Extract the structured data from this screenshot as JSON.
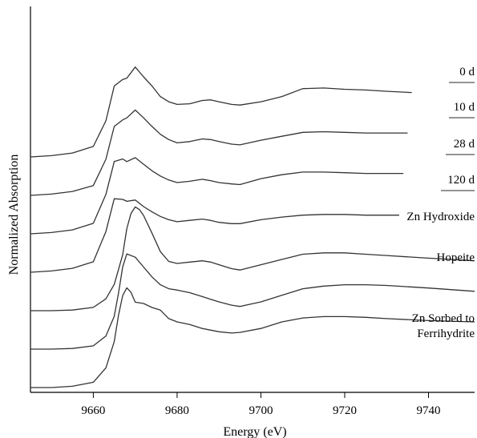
{
  "chart_data": {
    "type": "line",
    "title": "",
    "xlabel": "Energy (eV)",
    "ylabel": "Normalized Absorption",
    "xlim": [
      9645,
      9751
    ],
    "xticks": [
      9660,
      9680,
      9700,
      9720,
      9740
    ],
    "tick_labels": [
      "9660",
      "9680",
      "9700",
      "9720",
      "9740"
    ],
    "grid": false,
    "legend": "none",
    "y_scale": "normalized, vertically offset stacked spectra (no y tick labels)",
    "colors": {
      "line": "#333333",
      "axis": "#000000",
      "text": "#000000"
    },
    "series": [
      {
        "name": "0 d",
        "offset": 6.0,
        "x": [
          9645,
          9650,
          9655,
          9660,
          9663,
          9665,
          9667,
          9668,
          9670,
          9672,
          9674,
          9676,
          9678,
          9680,
          9683,
          9686,
          9688,
          9690,
          9693,
          9695,
          9700,
          9705,
          9710,
          9715,
          9720,
          9725,
          9730,
          9736
        ],
        "y": [
          0.0,
          0.02,
          0.06,
          0.16,
          0.55,
          1.08,
          1.18,
          1.2,
          1.37,
          1.22,
          1.08,
          0.92,
          0.84,
          0.8,
          0.81,
          0.86,
          0.87,
          0.84,
          0.8,
          0.79,
          0.84,
          0.92,
          1.04,
          1.05,
          1.03,
          1.02,
          1.0,
          0.98
        ]
      },
      {
        "name": "10 d",
        "offset": 5.0,
        "x": [
          9645,
          9650,
          9655,
          9660,
          9663,
          9665,
          9667,
          9668,
          9670,
          9672,
          9674,
          9676,
          9678,
          9680,
          9683,
          9686,
          9688,
          9690,
          9693,
          9695,
          9700,
          9705,
          9710,
          9715,
          9720,
          9725,
          9730,
          9735
        ],
        "y": [
          0.0,
          0.02,
          0.06,
          0.15,
          0.55,
          1.05,
          1.15,
          1.18,
          1.3,
          1.18,
          1.05,
          0.93,
          0.85,
          0.8,
          0.82,
          0.86,
          0.85,
          0.82,
          0.78,
          0.77,
          0.84,
          0.9,
          0.96,
          0.97,
          0.96,
          0.95,
          0.95,
          0.95
        ]
      },
      {
        "name": "28 d",
        "offset": 4.0,
        "x": [
          9645,
          9650,
          9655,
          9660,
          9663,
          9665,
          9667,
          9668,
          9670,
          9672,
          9674,
          9676,
          9678,
          9680,
          9683,
          9686,
          9688,
          9690,
          9693,
          9695,
          9700,
          9705,
          9710,
          9715,
          9720,
          9725,
          9730,
          9734
        ],
        "y": [
          0.0,
          0.02,
          0.06,
          0.16,
          0.6,
          1.1,
          1.14,
          1.1,
          1.16,
          1.06,
          0.96,
          0.88,
          0.82,
          0.78,
          0.8,
          0.83,
          0.81,
          0.78,
          0.76,
          0.75,
          0.84,
          0.9,
          0.94,
          0.94,
          0.93,
          0.92,
          0.92,
          0.92
        ]
      },
      {
        "name": "120 d",
        "offset": 3.0,
        "x": [
          9645,
          9650,
          9655,
          9660,
          9663,
          9665,
          9667,
          9668,
          9670,
          9672,
          9674,
          9676,
          9678,
          9680,
          9683,
          9686,
          9688,
          9690,
          9693,
          9695,
          9700,
          9705,
          9710,
          9715,
          9720,
          9725,
          9730,
          9733
        ],
        "y": [
          0.0,
          0.02,
          0.06,
          0.16,
          0.62,
          1.12,
          1.11,
          1.08,
          1.1,
          1.0,
          0.92,
          0.85,
          0.8,
          0.77,
          0.79,
          0.81,
          0.79,
          0.76,
          0.74,
          0.74,
          0.8,
          0.84,
          0.87,
          0.88,
          0.88,
          0.87,
          0.87,
          0.87
        ]
      },
      {
        "name": "Zn Hydroxide",
        "offset": 2.0,
        "x": [
          9645,
          9650,
          9655,
          9660,
          9663,
          9665,
          9667,
          9668,
          9669,
          9670,
          9671,
          9672,
          9674,
          9676,
          9678,
          9680,
          9683,
          9686,
          9688,
          9690,
          9693,
          9695,
          9700,
          9705,
          9710,
          9715,
          9720,
          9725,
          9730,
          9740,
          9751
        ],
        "y": [
          0.0,
          0.0,
          0.01,
          0.05,
          0.18,
          0.4,
          0.85,
          1.25,
          1.48,
          1.58,
          1.54,
          1.45,
          1.18,
          0.9,
          0.75,
          0.72,
          0.74,
          0.76,
          0.74,
          0.7,
          0.64,
          0.62,
          0.7,
          0.78,
          0.86,
          0.88,
          0.88,
          0.86,
          0.84,
          0.8,
          0.76
        ]
      },
      {
        "name": "Hopeite",
        "offset": 1.0,
        "x": [
          9645,
          9650,
          9655,
          9660,
          9663,
          9665,
          9666,
          9667,
          9668,
          9670,
          9672,
          9674,
          9676,
          9678,
          9680,
          9683,
          9686,
          9688,
          9690,
          9693,
          9695,
          9700,
          9705,
          9710,
          9715,
          9720,
          9725,
          9730,
          9740,
          9751
        ],
        "y": [
          0.0,
          0.0,
          0.01,
          0.05,
          0.2,
          0.5,
          0.85,
          1.25,
          1.45,
          1.4,
          1.25,
          1.1,
          0.98,
          0.92,
          0.9,
          0.86,
          0.8,
          0.76,
          0.72,
          0.67,
          0.65,
          0.72,
          0.82,
          0.92,
          0.96,
          0.98,
          0.98,
          0.97,
          0.93,
          0.88
        ]
      },
      {
        "name": "Zn Sorbed to Ferrihydrite",
        "offset": 0.0,
        "x": [
          9645,
          9650,
          9655,
          9660,
          9663,
          9665,
          9666,
          9667,
          9668,
          9669,
          9670,
          9672,
          9674,
          9676,
          9678,
          9680,
          9683,
          9686,
          9690,
          9693,
          9695,
          9700,
          9705,
          9710,
          9715,
          9720,
          9725,
          9730,
          9740,
          9751
        ],
        "y": [
          0.0,
          0.0,
          0.02,
          0.08,
          0.3,
          0.7,
          1.1,
          1.4,
          1.52,
          1.45,
          1.3,
          1.28,
          1.22,
          1.18,
          1.05,
          1.0,
          0.96,
          0.9,
          0.85,
          0.83,
          0.84,
          0.9,
          1.0,
          1.06,
          1.08,
          1.08,
          1.07,
          1.05,
          1.02,
          1.0
        ]
      }
    ],
    "series_labels": [
      {
        "text": "0 d",
        "underline": true
      },
      {
        "text": "10 d",
        "underline": true
      },
      {
        "text": "28 d",
        "underline": true
      },
      {
        "text": "120 d",
        "underline": true
      },
      {
        "text": "Zn Hydroxide",
        "underline": false
      },
      {
        "text": "Hopeite",
        "underline": false
      },
      {
        "lines": [
          "Zn Sorbed to",
          "Ferrihydrite"
        ],
        "underline": false
      }
    ]
  }
}
